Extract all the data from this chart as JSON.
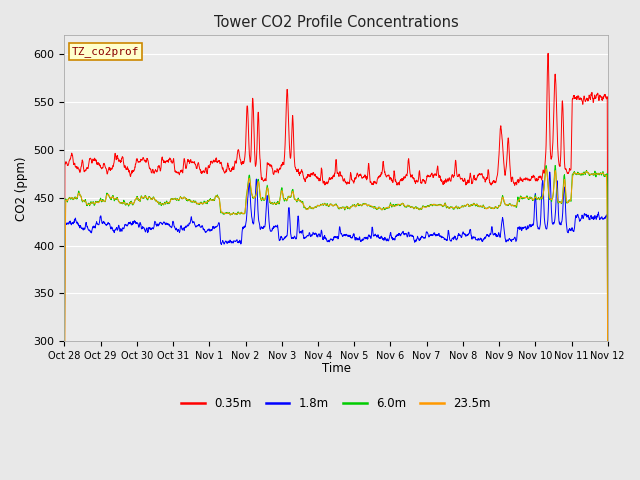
{
  "title": "Tower CO2 Profile Concentrations",
  "xlabel": "Time",
  "ylabel": "CO2 (ppm)",
  "ylim": [
    300,
    620
  ],
  "yticks": [
    300,
    350,
    400,
    450,
    500,
    550,
    600
  ],
  "fig_bg": "#e8e8e8",
  "plot_bg": "#ebebeb",
  "grid_color": "#ffffff",
  "legend_label": "TZ_co2prof",
  "legend_bg": "#ffffcc",
  "legend_border": "#cc8800",
  "legend_entries": [
    "0.35m",
    "1.8m",
    "6.0m",
    "23.5m"
  ],
  "legend_colors": [
    "#ff0000",
    "#0000ff",
    "#00cc00",
    "#ff9900"
  ],
  "xtick_labels": [
    "Oct 28",
    "Oct 29",
    "Oct 30",
    "Oct 31",
    "Nov 1",
    "Nov 2",
    "Nov 3",
    "Nov 4",
    "Nov 5",
    "Nov 6",
    "Nov 7",
    "Nov 8",
    "Nov 9",
    "Nov 10",
    "Nov 11",
    "Nov 12"
  ],
  "num_days": 15,
  "seed": 42
}
